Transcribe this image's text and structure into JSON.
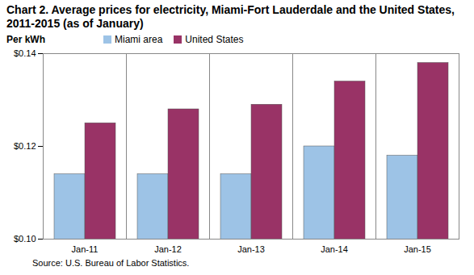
{
  "chart_data": {
    "type": "bar",
    "title": "Chart 2. Average prices for electricity, Miami-Fort Lauderdale and the United States, 2011-2015 (as of January)",
    "subtitle": "Per kWh",
    "caption": "Source: U.S. Bureau of Labor Statistics.",
    "categories": [
      "Jan-11",
      "Jan-12",
      "Jan-13",
      "Jan-14",
      "Jan-15"
    ],
    "series": [
      {
        "name": "Miami area",
        "color": "#9dc3e6",
        "values": [
          0.114,
          0.114,
          0.114,
          0.12,
          0.118
        ]
      },
      {
        "name": "United States",
        "color": "#993366",
        "values": [
          0.125,
          0.128,
          0.129,
          0.134,
          0.138
        ]
      }
    ],
    "ylim": [
      0.1,
      0.14
    ],
    "yticks": [
      {
        "value": 0.1,
        "label": "$0.10"
      },
      {
        "value": 0.12,
        "label": "$0.12"
      },
      {
        "value": 0.14,
        "label": "$0.14"
      }
    ],
    "grid": false,
    "legend": "top"
  }
}
